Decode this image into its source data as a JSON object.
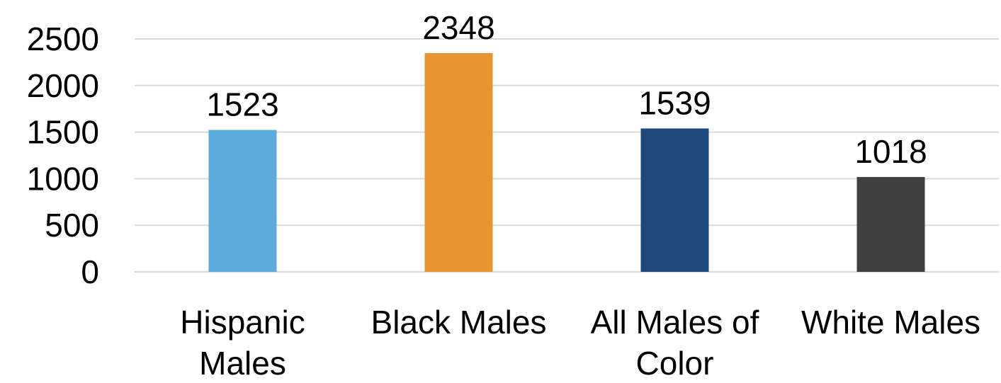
{
  "chart_data": {
    "type": "bar",
    "title": "",
    "xlabel": "",
    "ylabel": "",
    "ylim": [
      0,
      2500
    ],
    "yticks": [
      0,
      500,
      1000,
      1500,
      2000,
      2500
    ],
    "grid": true,
    "legend": "none",
    "categories": [
      [
        "Hispanic",
        "Males"
      ],
      [
        "Black Males"
      ],
      [
        "All Males of",
        "Color"
      ],
      [
        "White Males"
      ]
    ],
    "values": [
      1523,
      2348,
      1539,
      1018
    ],
    "data_labels": [
      "1523",
      "2348",
      "1539",
      "1018"
    ],
    "colors": [
      "#5BAAD9",
      "#E69533",
      "#1F497D",
      "#404040"
    ]
  }
}
